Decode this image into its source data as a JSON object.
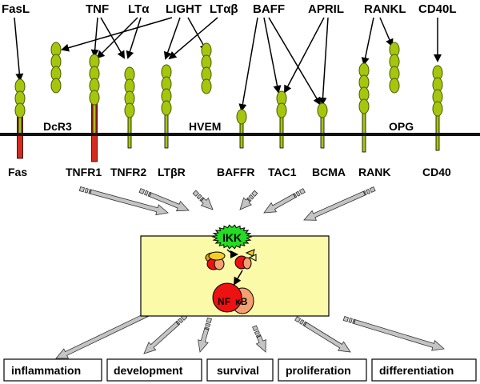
{
  "ligands": [
    "FasL",
    "TNF",
    "LTα",
    "LIGHT",
    "LTαβ",
    "BAFF",
    "APRIL",
    "RANKL",
    "CD40L"
  ],
  "receptors_below": [
    "Fas",
    "TNFR1",
    "TNFR2",
    "LTβR",
    "BAFFR",
    "TAC1",
    "BCMA",
    "RANK",
    "CD40"
  ],
  "receptors_above": [
    "DcR3",
    "HVEM",
    "OPG"
  ],
  "center": {
    "kinase": "IKK",
    "factor_left": "NF",
    "factor_right": "κB"
  },
  "outcomes": [
    "inflammation",
    "development",
    "survival",
    "proliferation",
    "differentiation"
  ],
  "colors": {
    "receptor_green": "#a6c60e",
    "receptor_outline": "#4a5a06",
    "death_domain_red": "#d42b1e",
    "membrane": "#111111",
    "nucleus_box": "#fafaa8",
    "ikk_green": "#22dd22",
    "nfkb_red": "#ee1111",
    "nfkb_salmon": "#f4a070",
    "arrow_gray": "#c4c4c4"
  }
}
